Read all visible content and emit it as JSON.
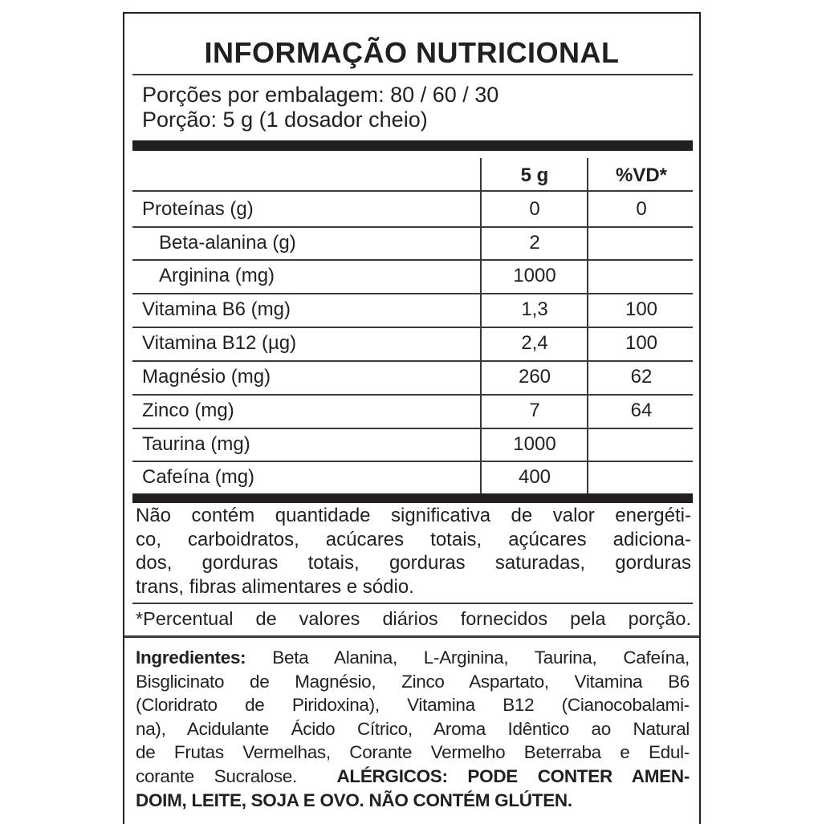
{
  "title": "INFORMAÇÃO NUTRICIONAL",
  "servings_per_package": "Porções por embalagem: 80 / 60 / 30",
  "serving_size": "Porção: 5 g (1 dosador cheio)",
  "table": {
    "headers": [
      "",
      "5 g",
      "%VD*"
    ],
    "rows": [
      {
        "name": "Proteínas (g)",
        "value": "0",
        "dv": "0"
      },
      {
        "name": "Beta-alanina (g)",
        "value": "2",
        "dv": ""
      },
      {
        "name": "Arginina (mg)",
        "value": "1000",
        "dv": ""
      },
      {
        "name": "Vitamina B6 (mg)",
        "value": "1,3",
        "dv": "100"
      },
      {
        "name": "Vitamina B12 (µg)",
        "value": "2,4",
        "dv": "100"
      },
      {
        "name": "Magnésio (mg)",
        "value": "260",
        "dv": "62"
      },
      {
        "name": "Zinco (mg)",
        "value": "7",
        "dv": "64"
      },
      {
        "name": "Taurina (mg)",
        "value": "1000",
        "dv": ""
      },
      {
        "name": "Cafeína (mg)",
        "value": "400",
        "dv": ""
      }
    ]
  },
  "not_significant_lines": [
    "Não contém quantidade significativa de valor energéti-",
    "co, carboidratos, acúcares totais, açúcares adiciona-",
    "dos, gorduras totais, gorduras saturadas, gorduras",
    "trans, fibras alimentares e sódio."
  ],
  "footnote": "*Percentual de valores diários fornecidos pela porção.",
  "ingredients": {
    "label": "Ingredientes:",
    "lines": [
      " Beta Alanina, L-Arginina, Taurina, Cafeína,",
      "Bisglicinato de Magnésio, Zinco Aspartato, Vitamina B6",
      "(Cloridrato de Piridoxina), Vitamina B12 (Cianocobalami-",
      "na), Acidulante Ácido Cítrico, Aroma Idêntico ao Natural",
      "de Frutas Vermelhas, Corante Vermelho Beterraba e Edul-",
      "corante Sucralose. "
    ],
    "allergens_line1": "ALÉRGICOS: PODE CONTER AMEN-",
    "allergens_line2": "DOIM, LEITE, SOJA E OVO. NÃO CONTÉM GLÚTEN."
  }
}
